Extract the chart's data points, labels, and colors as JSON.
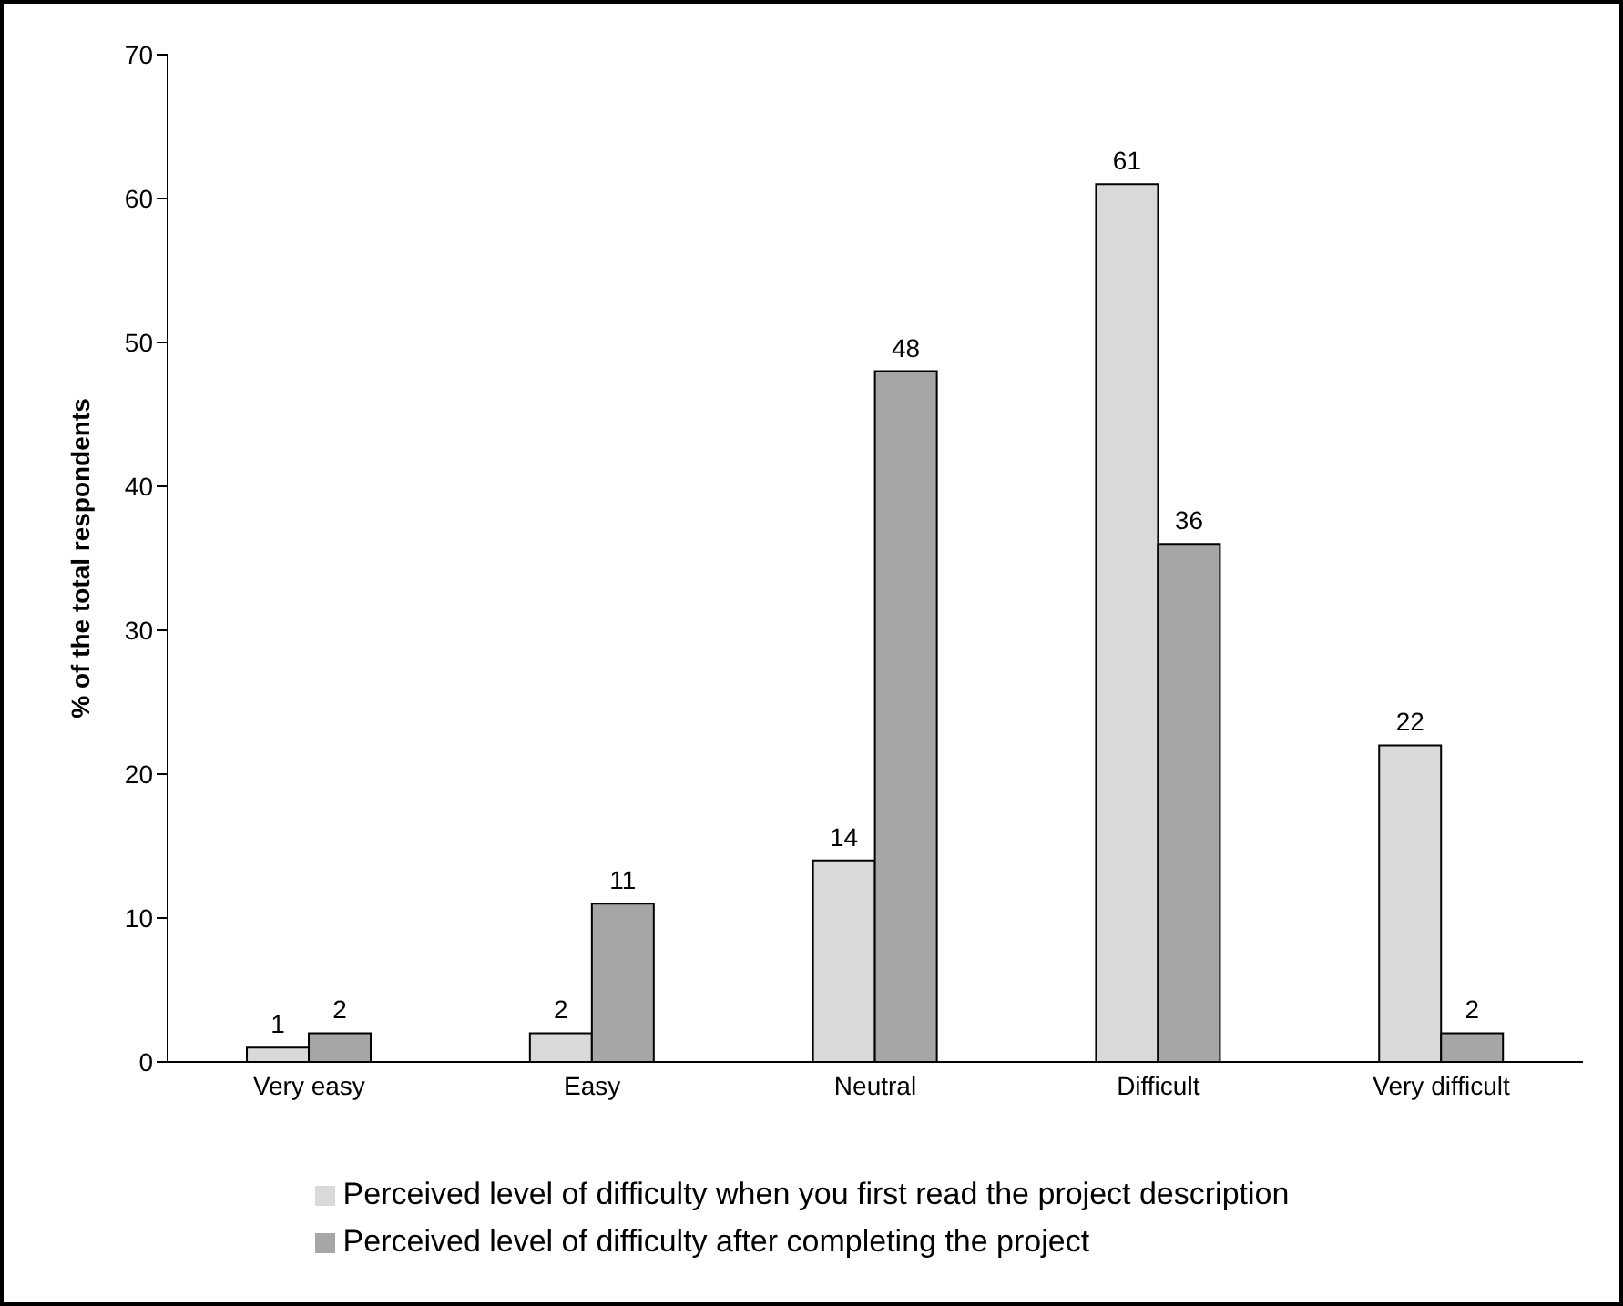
{
  "chart_data": {
    "type": "bar",
    "ylabel": "% of the total respondents",
    "categories": [
      "Very easy",
      "Easy",
      "Neutral",
      "Difficult",
      "Very difficult"
    ],
    "series": [
      {
        "name": "Perceived level of difficulty when you first read the project description",
        "color": "#d9d9d9",
        "values": [
          1,
          2,
          14,
          61,
          22
        ]
      },
      {
        "name": "Perceived level of difficulty after completing the project",
        "color": "#a6a6a6",
        "values": [
          2,
          11,
          48,
          36,
          2
        ]
      }
    ],
    "ylim": [
      0,
      70
    ],
    "yticks": [
      0,
      10,
      20,
      30,
      40,
      50,
      60,
      70
    ],
    "data_labels": true,
    "grid": false,
    "legend": "bottom left"
  }
}
